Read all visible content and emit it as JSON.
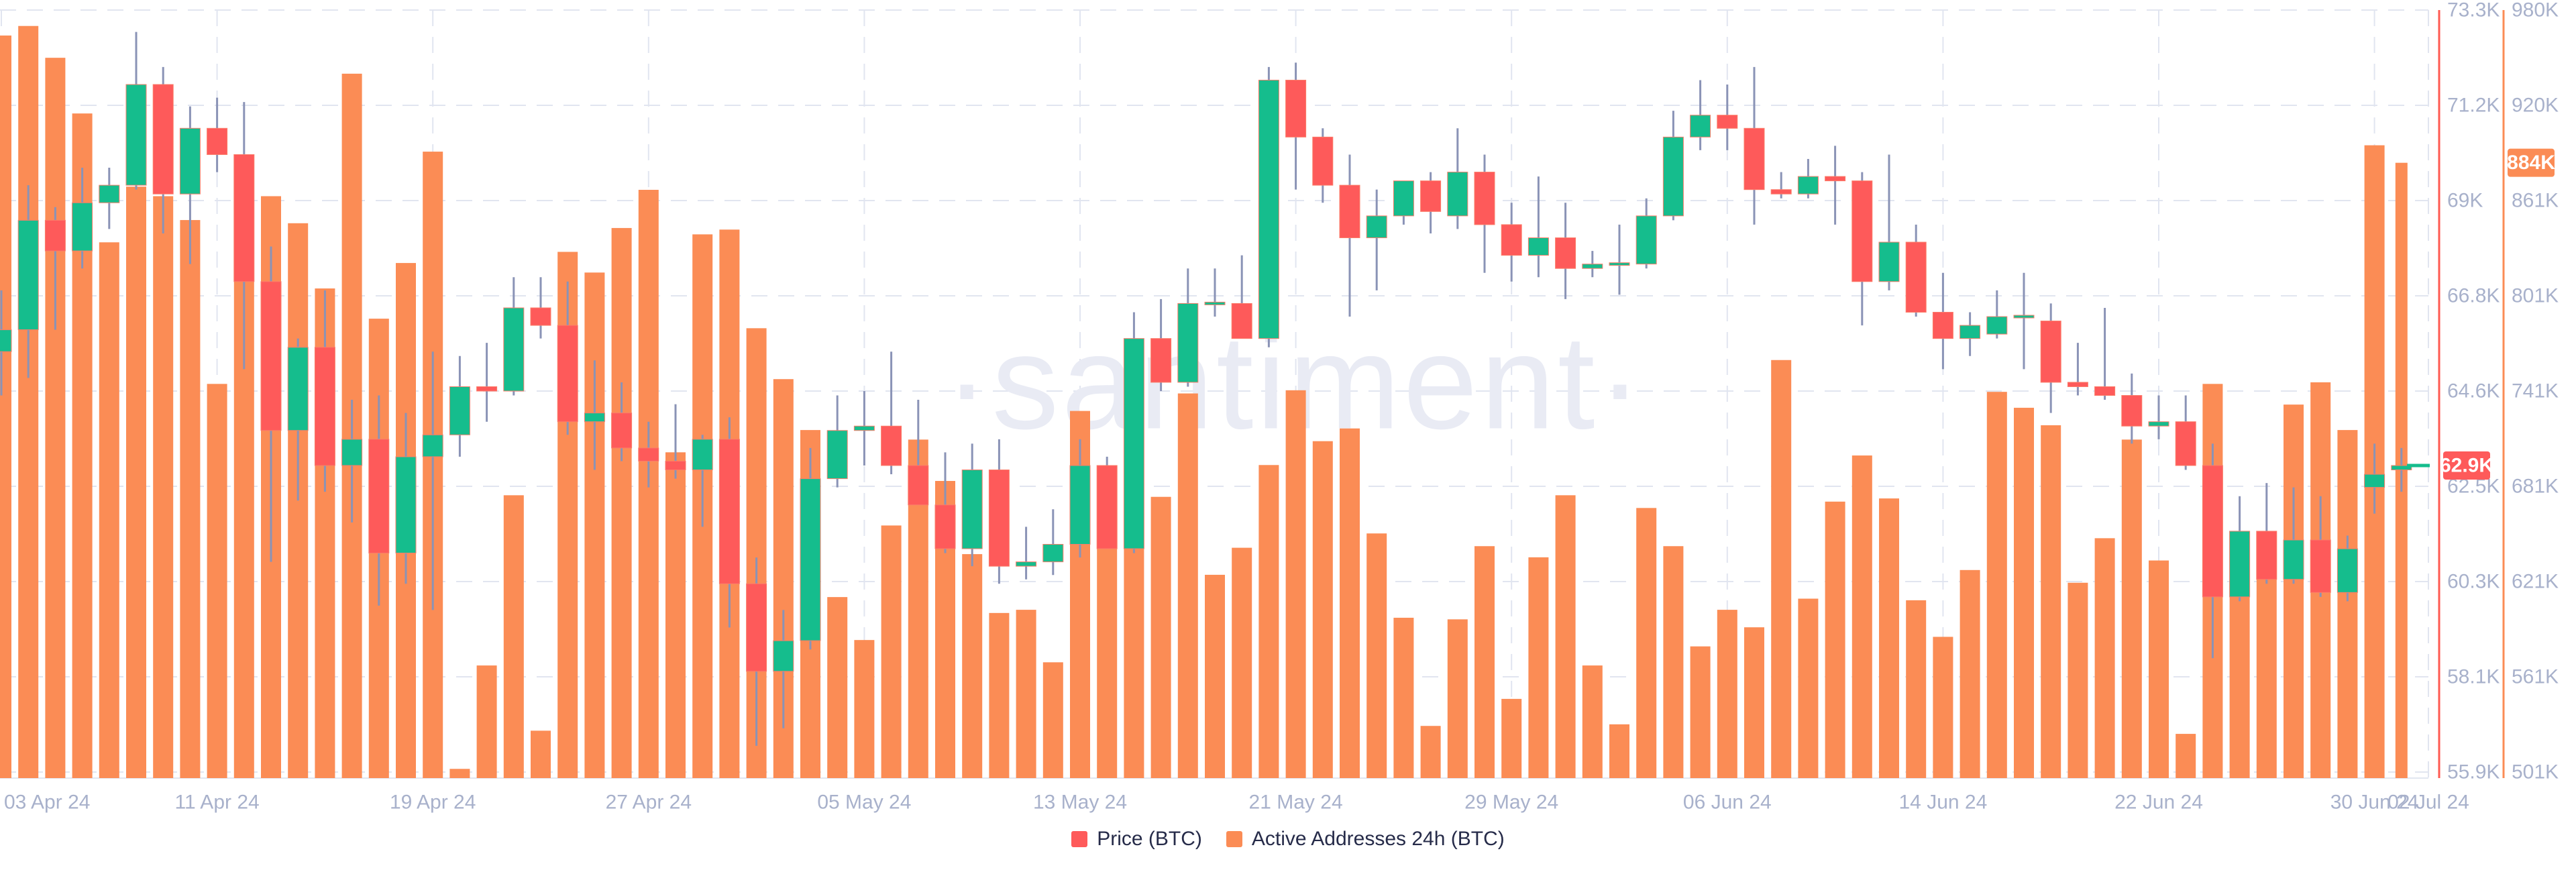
{
  "watermark": "·santiment·",
  "legend": {
    "price_label": "Price (BTC)",
    "addresses_label": "Active Addresses 24h (BTC)"
  },
  "colors": {
    "candle_up": "#15bd8d",
    "candle_down": "#fe5a5a",
    "candle_border": "#fb7d6a",
    "wick": "#8a93b6",
    "bar": "#fb8c55",
    "price_axis_line": "#ff5a52",
    "addresses_axis_line": "#fb8c55",
    "grid": "#e1e5f0",
    "baseline": "#e2e6f0",
    "tick_text": "#a8b1cb",
    "badge_text": "#ffffff",
    "watermark": "#e9ebf4",
    "legend_text": "#262b49",
    "background": "#ffffff"
  },
  "chart_data": {
    "type": "candlestick+bar",
    "title": "",
    "legend_entries": [
      "Price (BTC)",
      "Active Addresses 24h (BTC)"
    ],
    "price_axis": {
      "ticks": [
        "73.3K",
        "71.2K",
        "69K",
        "66.8K",
        "64.6K",
        "62.5K",
        "60.3K",
        "58.1K",
        "55.9K"
      ],
      "max": 73.3,
      "min": 55.9,
      "current_value": 62.9,
      "current_badge": "62.9K"
    },
    "addresses_axis": {
      "ticks": [
        "980K",
        "920K",
        "861K",
        "801K",
        "741K",
        "681K",
        "621K",
        "561K",
        "501K"
      ],
      "max": 980,
      "min": 501,
      "current_value": 884,
      "current_badge": "884K"
    },
    "x_axis": {
      "tick_labels": [
        "03 Apr 24",
        "11 Apr 24",
        "19 Apr 24",
        "27 Apr 24",
        "05 May 24",
        "13 May 24",
        "21 May 24",
        "29 May 24",
        "06 Jun 24",
        "14 Jun 24",
        "22 Jun 24",
        "30 Jun 24",
        "02 Jul 24"
      ],
      "tick_days": [
        0,
        8,
        16,
        24,
        32,
        40,
        48,
        56,
        64,
        72,
        80,
        88,
        90
      ]
    },
    "series": [
      {
        "name": "Price (BTC)",
        "type": "candlestick"
      },
      {
        "name": "Active Addresses 24h (BTC)",
        "type": "bar",
        "unit": "K"
      }
    ],
    "days_format": [
      "date",
      "open",
      "high",
      "low",
      "close",
      "addresses_k"
    ],
    "days": [
      [
        "2024-04-03",
        65.5,
        66.9,
        64.5,
        66.0,
        964
      ],
      [
        "2024-04-04",
        66.0,
        69.3,
        64.9,
        68.5,
        970
      ],
      [
        "2024-04-05",
        68.5,
        68.8,
        66.0,
        67.8,
        950
      ],
      [
        "2024-04-06",
        67.8,
        69.7,
        67.4,
        68.9,
        915
      ],
      [
        "2024-04-07",
        68.9,
        69.7,
        68.3,
        69.3,
        834
      ],
      [
        "2024-04-08",
        69.3,
        72.8,
        69.2,
        71.6,
        869
      ],
      [
        "2024-04-09",
        71.6,
        72.0,
        68.2,
        69.1,
        863
      ],
      [
        "2024-04-10",
        69.1,
        71.1,
        67.5,
        70.6,
        848
      ],
      [
        "2024-04-11",
        70.6,
        71.3,
        69.6,
        70.0,
        745
      ],
      [
        "2024-04-12",
        70.0,
        71.2,
        65.1,
        67.1,
        887
      ],
      [
        "2024-04-13",
        67.1,
        67.9,
        60.7,
        63.7,
        863
      ],
      [
        "2024-04-14",
        63.7,
        65.8,
        62.1,
        65.6,
        846
      ],
      [
        "2024-04-15",
        65.6,
        66.9,
        62.3,
        62.9,
        805
      ],
      [
        "2024-04-16",
        62.9,
        64.4,
        61.6,
        63.5,
        940
      ],
      [
        "2024-04-17",
        63.5,
        64.5,
        59.7,
        60.9,
        786
      ],
      [
        "2024-04-18",
        60.9,
        64.1,
        60.2,
        63.1,
        821
      ],
      [
        "2024-04-19",
        63.1,
        65.5,
        59.6,
        63.6,
        891
      ],
      [
        "2024-04-20",
        63.6,
        65.4,
        63.1,
        64.7,
        503
      ],
      [
        "2024-04-21",
        64.7,
        65.7,
        63.9,
        64.6,
        568
      ],
      [
        "2024-04-22",
        64.6,
        67.2,
        64.5,
        66.5,
        675
      ],
      [
        "2024-04-23",
        66.5,
        67.2,
        65.8,
        66.1,
        527
      ],
      [
        "2024-04-24",
        66.1,
        67.1,
        63.6,
        63.9,
        828
      ],
      [
        "2024-04-25",
        63.9,
        65.3,
        62.8,
        64.1,
        815
      ],
      [
        "2024-04-26",
        64.1,
        64.8,
        63.0,
        63.3,
        843
      ],
      [
        "2024-04-27",
        63.3,
        63.9,
        62.4,
        63.0,
        867
      ],
      [
        "2024-04-28",
        63.0,
        64.3,
        62.6,
        62.8,
        702
      ],
      [
        "2024-04-29",
        62.8,
        63.6,
        61.5,
        63.5,
        839
      ],
      [
        "2024-04-30",
        63.5,
        64.0,
        59.2,
        60.2,
        842
      ],
      [
        "2024-05-01",
        60.2,
        60.8,
        56.5,
        58.2,
        780
      ],
      [
        "2024-05-02",
        58.2,
        59.6,
        56.9,
        58.9,
        748
      ],
      [
        "2024-05-03",
        58.9,
        63.3,
        58.7,
        62.6,
        716
      ],
      [
        "2024-05-04",
        62.6,
        64.5,
        62.4,
        63.7,
        611
      ],
      [
        "2024-05-05",
        63.7,
        64.6,
        62.9,
        63.8,
        584
      ],
      [
        "2024-05-06",
        63.8,
        65.5,
        62.7,
        62.9,
        656
      ],
      [
        "2024-05-07",
        62.9,
        64.4,
        62.3,
        62.0,
        710
      ],
      [
        "2024-05-08",
        62.0,
        63.2,
        60.9,
        61.0,
        684
      ],
      [
        "2024-05-09",
        61.0,
        63.4,
        60.6,
        62.8,
        638
      ],
      [
        "2024-05-10",
        62.8,
        63.5,
        60.2,
        60.6,
        601
      ],
      [
        "2024-05-11",
        60.6,
        61.5,
        60.3,
        60.7,
        603
      ],
      [
        "2024-05-12",
        60.7,
        61.9,
        60.4,
        61.1,
        570
      ],
      [
        "2024-05-13",
        61.1,
        63.5,
        60.8,
        62.9,
        728
      ],
      [
        "2024-05-14",
        62.9,
        63.1,
        61.0,
        61.0,
        644
      ],
      [
        "2024-05-15",
        61.0,
        66.4,
        60.9,
        65.8,
        644
      ],
      [
        "2024-05-16",
        65.8,
        66.7,
        64.6,
        64.8,
        674
      ],
      [
        "2024-05-17",
        64.8,
        67.4,
        64.7,
        66.6,
        739
      ],
      [
        "2024-05-18",
        66.6,
        67.4,
        66.3,
        66.6,
        625
      ],
      [
        "2024-05-19",
        66.6,
        67.7,
        65.9,
        65.8,
        642
      ],
      [
        "2024-05-20",
        65.8,
        72.0,
        65.6,
        71.7,
        694
      ],
      [
        "2024-05-21",
        71.7,
        72.1,
        69.2,
        70.4,
        741
      ],
      [
        "2024-05-22",
        70.4,
        70.6,
        68.9,
        69.3,
        709
      ],
      [
        "2024-05-23",
        69.3,
        70.0,
        66.3,
        68.1,
        717
      ],
      [
        "2024-05-24",
        68.1,
        69.2,
        66.9,
        68.6,
        651
      ],
      [
        "2024-05-25",
        68.6,
        69.3,
        68.4,
        69.4,
        598
      ],
      [
        "2024-05-26",
        69.4,
        69.6,
        68.2,
        68.7,
        530
      ],
      [
        "2024-05-27",
        68.6,
        70.6,
        68.3,
        69.6,
        597
      ],
      [
        "2024-05-28",
        69.6,
        70.0,
        67.3,
        68.4,
        643
      ],
      [
        "2024-05-29",
        68.4,
        68.9,
        67.1,
        67.7,
        547
      ],
      [
        "2024-05-30",
        67.7,
        69.5,
        67.2,
        68.1,
        636
      ],
      [
        "2024-05-31",
        68.1,
        68.9,
        66.7,
        67.4,
        675
      ],
      [
        "2024-06-01",
        67.4,
        67.8,
        67.2,
        67.5,
        568
      ],
      [
        "2024-06-02",
        67.5,
        68.4,
        66.8,
        67.5,
        531
      ],
      [
        "2024-06-03",
        67.5,
        69.0,
        67.4,
        68.6,
        667
      ],
      [
        "2024-06-04",
        68.6,
        71.0,
        68.5,
        70.4,
        643
      ],
      [
        "2024-06-05",
        70.4,
        71.7,
        70.1,
        70.9,
        580
      ],
      [
        "2024-06-06",
        70.9,
        71.6,
        70.1,
        70.6,
        603
      ],
      [
        "2024-06-07",
        70.6,
        72.0,
        68.4,
        69.2,
        592
      ],
      [
        "2024-06-08",
        69.2,
        69.6,
        69.0,
        69.1,
        760
      ],
      [
        "2024-06-09",
        69.1,
        69.9,
        69.0,
        69.5,
        610
      ],
      [
        "2024-06-10",
        69.5,
        70.2,
        68.4,
        69.4,
        671
      ],
      [
        "2024-06-11",
        69.4,
        69.6,
        66.1,
        67.1,
        700
      ],
      [
        "2024-06-12",
        67.1,
        70.0,
        66.9,
        68.0,
        673
      ],
      [
        "2024-06-13",
        68.0,
        68.4,
        66.3,
        66.4,
        609
      ],
      [
        "2024-06-14",
        66.4,
        67.3,
        65.1,
        65.8,
        586
      ],
      [
        "2024-06-15",
        65.8,
        66.4,
        65.4,
        66.1,
        628
      ],
      [
        "2024-06-16",
        65.9,
        66.9,
        65.8,
        66.3,
        740
      ],
      [
        "2024-06-17",
        66.3,
        67.3,
        65.1,
        66.3,
        730
      ],
      [
        "2024-06-18",
        66.2,
        66.6,
        64.1,
        64.8,
        719
      ],
      [
        "2024-06-19",
        64.8,
        65.7,
        64.5,
        64.7,
        620
      ],
      [
        "2024-06-20",
        64.7,
        66.5,
        64.4,
        64.5,
        648
      ],
      [
        "2024-06-21",
        64.5,
        65.0,
        63.4,
        63.8,
        710
      ],
      [
        "2024-06-22",
        63.8,
        64.5,
        63.5,
        63.9,
        634
      ],
      [
        "2024-06-23",
        63.9,
        64.5,
        62.8,
        62.9,
        525
      ],
      [
        "2024-06-24",
        62.9,
        63.4,
        58.5,
        59.9,
        745
      ],
      [
        "2024-06-25",
        59.9,
        62.2,
        59.8,
        61.4,
        619
      ],
      [
        "2024-06-26",
        61.4,
        62.5,
        60.2,
        60.3,
        625
      ],
      [
        "2024-06-27",
        60.3,
        62.4,
        60.2,
        61.2,
        732
      ],
      [
        "2024-06-28",
        61.2,
        62.2,
        59.9,
        60.0,
        746
      ],
      [
        "2024-06-29",
        60.0,
        61.3,
        59.8,
        61.0,
        716
      ],
      [
        "2024-06-30",
        62.4,
        63.4,
        61.8,
        62.7,
        895
      ],
      [
        "2024-07-01",
        62.8,
        63.3,
        62.3,
        62.9,
        884
      ]
    ]
  }
}
